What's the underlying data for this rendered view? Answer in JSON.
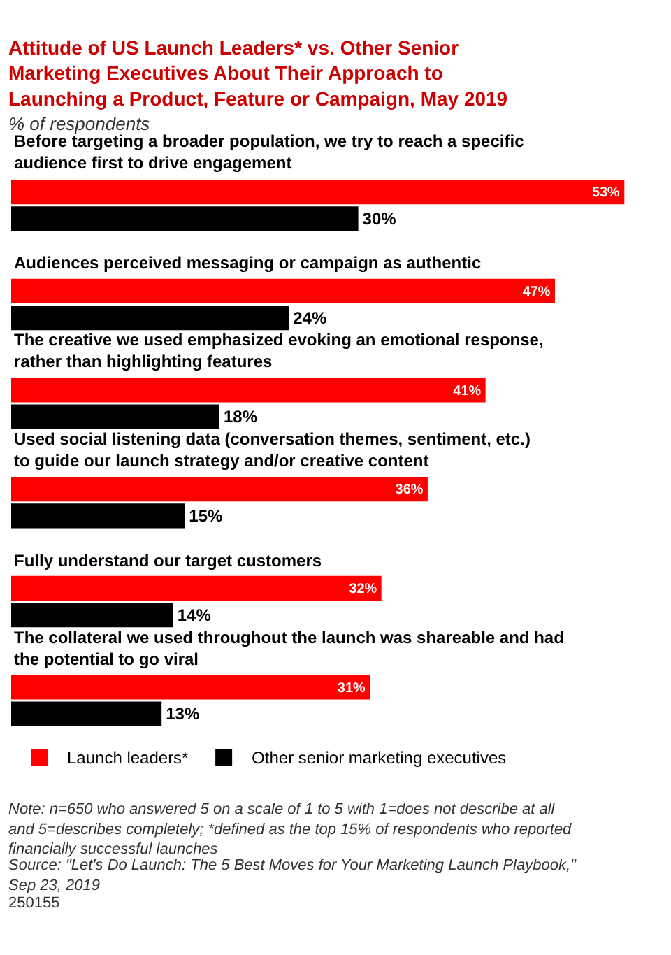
{
  "chart_data": {
    "type": "bar",
    "orientation": "horizontal",
    "title": "Attitude of US Launch Leaders* vs. Other Senior Marketing Executives About Their Approach to Launching a Product, Feature or Campaign, May 2019",
    "subtitle": "% of respondents",
    "categories": [
      "Before targeting a broader population, we try to reach a specific audience first to drive engagement",
      "Audiences perceived messaging or campaign as authentic",
      "The creative we used emphasized evoking an emotional response, rather than highlighting features",
      "Used social listening data (conversation themes, sentiment, etc.) to guide our launch strategy and/or creative content",
      "Fully understand our target customers",
      "The collateral we used throughout the launch was shareable and had the potential to go viral"
    ],
    "series": [
      {
        "name": "Launch leaders*",
        "color": "#ff0000",
        "values": [
          53,
          47,
          41,
          36,
          32,
          31
        ],
        "value_labels": [
          "53%",
          "47%",
          "41%",
          "36%",
          "32%",
          "31%"
        ]
      },
      {
        "name": "Other senior marketing executives",
        "color": "#000000",
        "values": [
          30,
          24,
          18,
          15,
          14,
          13
        ],
        "value_labels": [
          "30%",
          "24%",
          "18%",
          "15%",
          "14%",
          "13%"
        ]
      }
    ],
    "legend": "bottom left",
    "annotations": [
      "Note: n=650 who answered 5 on a scale of 1 to 5 with 1=does not describe at all and 5=describes completely; *defined as the top 15% of respondents who reported financially successful launches",
      "Source: \"Let's Do Launch: The 5 Best Moves for Your Marketing Launch Playbook,\" Sep 23, 2019",
      "250155"
    ]
  }
}
